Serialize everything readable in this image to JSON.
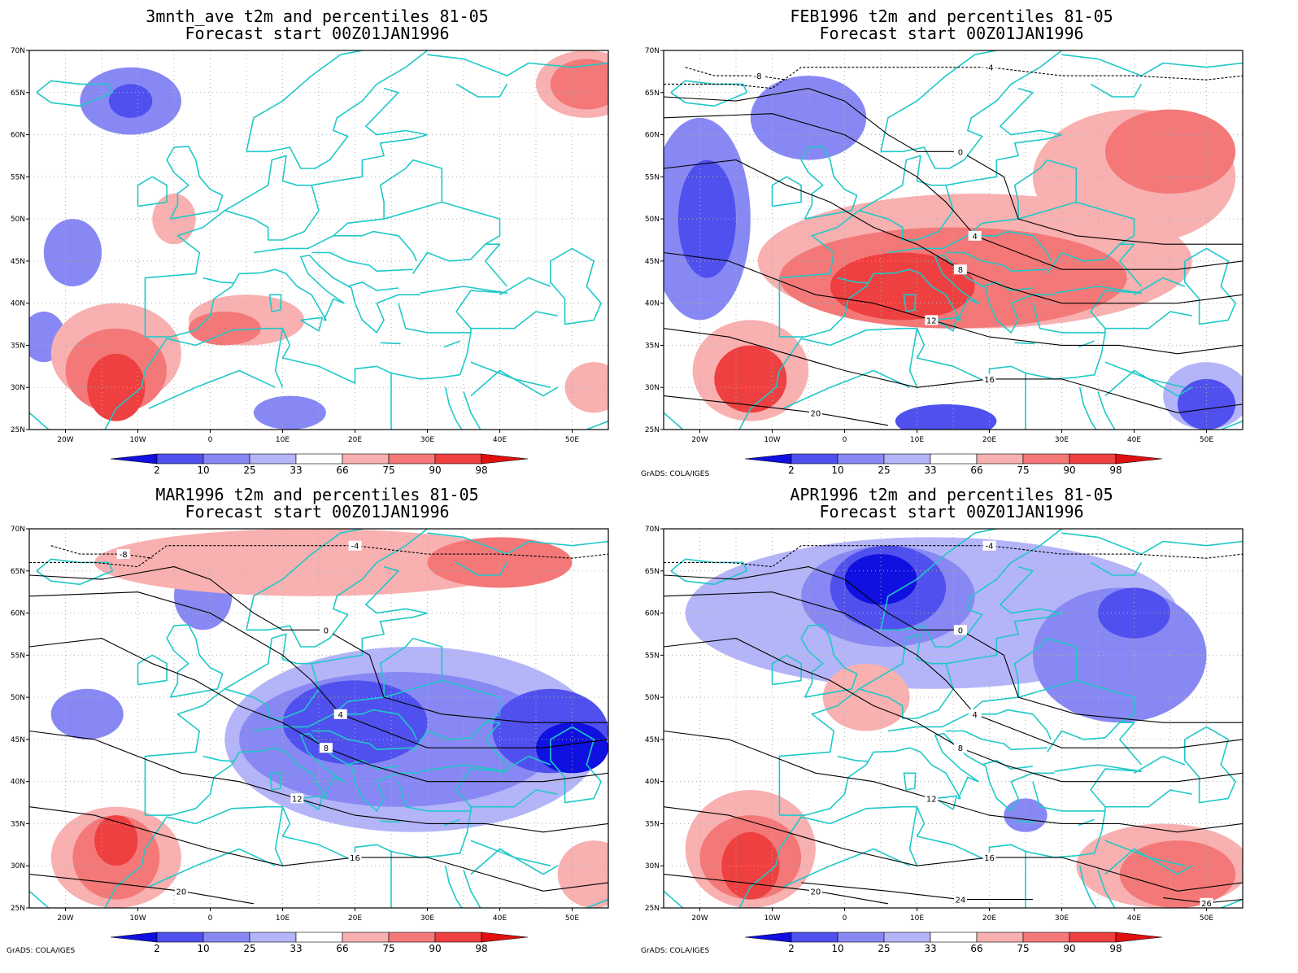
{
  "colors": {
    "p2": "#1010e0",
    "p10": "#5050ee",
    "p25": "#8888f4",
    "p33": "#b4b4f8",
    "p66": "#f8b0b0",
    "p75": "#f47878",
    "p90": "#ee4040",
    "p98": "#e01010",
    "coast": "#20c8c8",
    "contour": "#000000",
    "grid": "#b0b0b0"
  },
  "credit_text": "GrADS: COLA/IGES",
  "colorbar_labels": [
    "2",
    "10",
    "25",
    "33",
    "66",
    "75",
    "90",
    "98"
  ],
  "axes": {
    "x_labels": [
      "20W",
      "10W",
      "0",
      "10E",
      "20E",
      "30E",
      "40E",
      "50E"
    ],
    "y_labels": [
      "70N",
      "65N",
      "60N",
      "55N",
      "50N",
      "45N",
      "40N",
      "35N",
      "30N",
      "25N"
    ]
  },
  "panels": [
    {
      "id": "3mnth",
      "title_line1": "3mnth_ave t2m and percentiles 81-05",
      "title_line2": "Forecast start 00Z01JAN1996",
      "show_credit": false,
      "contours": [],
      "blobs": [
        {
          "c": "p25",
          "lon": -11,
          "lat": 64,
          "rx": 7,
          "ry": 4
        },
        {
          "c": "p10",
          "lon": -11,
          "lat": 64,
          "rx": 3,
          "ry": 2
        },
        {
          "c": "p25",
          "lon": -19,
          "lat": 46,
          "rx": 4,
          "ry": 4
        },
        {
          "c": "p25",
          "lon": -23,
          "lat": 36,
          "rx": 3,
          "ry": 3
        },
        {
          "c": "p25",
          "lon": 11,
          "lat": 27,
          "rx": 5,
          "ry": 2
        },
        {
          "c": "p66",
          "lon": -13,
          "lat": 34,
          "rx": 9,
          "ry": 6
        },
        {
          "c": "p75",
          "lon": -13,
          "lat": 32,
          "rx": 7,
          "ry": 5
        },
        {
          "c": "p90",
          "lon": -13,
          "lat": 30,
          "rx": 4,
          "ry": 4
        },
        {
          "c": "p66",
          "lon": 5,
          "lat": 38,
          "rx": 8,
          "ry": 3
        },
        {
          "c": "p75",
          "lon": 2,
          "lat": 37,
          "rx": 5,
          "ry": 2
        },
        {
          "c": "p66",
          "lon": -5,
          "lat": 50,
          "rx": 3,
          "ry": 3
        },
        {
          "c": "p66",
          "lon": 52,
          "lat": 66,
          "rx": 7,
          "ry": 4
        },
        {
          "c": "p75",
          "lon": 52,
          "lat": 66,
          "rx": 5,
          "ry": 3
        },
        {
          "c": "p66",
          "lon": 53,
          "lat": 30,
          "rx": 4,
          "ry": 3
        }
      ]
    },
    {
      "id": "feb",
      "title_line1": "FEB1996 t2m and percentiles 81-05",
      "title_line2": "Forecast start 00Z01JAN1996",
      "show_credit": true,
      "contours": [
        "-8",
        "-4",
        "0",
        "4",
        "8",
        "12",
        "16",
        "20"
      ],
      "blobs": [
        {
          "c": "p25",
          "lon": -20,
          "lat": 50,
          "rx": 7,
          "ry": 12
        },
        {
          "c": "p10",
          "lon": -19,
          "lat": 50,
          "rx": 4,
          "ry": 7
        },
        {
          "c": "p25",
          "lon": -5,
          "lat": 62,
          "rx": 8,
          "ry": 5
        },
        {
          "c": "p33",
          "lon": 50,
          "lat": 29,
          "rx": 6,
          "ry": 4
        },
        {
          "c": "p10",
          "lon": 50,
          "lat": 28,
          "rx": 4,
          "ry": 3
        },
        {
          "c": "p10",
          "lon": 14,
          "lat": 26,
          "rx": 7,
          "ry": 2
        },
        {
          "c": "p66",
          "lon": 18,
          "lat": 45,
          "rx": 30,
          "ry": 8
        },
        {
          "c": "p75",
          "lon": 15,
          "lat": 43,
          "rx": 24,
          "ry": 6
        },
        {
          "c": "p90",
          "lon": 8,
          "lat": 42,
          "rx": 10,
          "ry": 4
        },
        {
          "c": "p66",
          "lon": 40,
          "lat": 55,
          "rx": 14,
          "ry": 8
        },
        {
          "c": "p75",
          "lon": 45,
          "lat": 58,
          "rx": 9,
          "ry": 5
        },
        {
          "c": "p66",
          "lon": -13,
          "lat": 32,
          "rx": 8,
          "ry": 6
        },
        {
          "c": "p90",
          "lon": -13,
          "lat": 31,
          "rx": 5,
          "ry": 4
        }
      ]
    },
    {
      "id": "mar",
      "title_line1": "MAR1996 t2m and percentiles 81-05",
      "title_line2": "Forecast start 00Z01JAN1996",
      "show_credit": true,
      "contours": [
        "-8",
        "-4",
        "0",
        "4",
        "8",
        "12",
        "16",
        "20"
      ],
      "blobs": [
        {
          "c": "p33",
          "lon": 28,
          "lat": 45,
          "rx": 26,
          "ry": 11
        },
        {
          "c": "p25",
          "lon": 26,
          "lat": 45,
          "rx": 22,
          "ry": 8
        },
        {
          "c": "p10",
          "lon": 20,
          "lat": 47,
          "rx": 10,
          "ry": 5
        },
        {
          "c": "p10",
          "lon": 47,
          "lat": 46,
          "rx": 8,
          "ry": 5
        },
        {
          "c": "p2",
          "lon": 50,
          "lat": 44,
          "rx": 5,
          "ry": 3
        },
        {
          "c": "p25",
          "lon": -1,
          "lat": 62,
          "rx": 4,
          "ry": 4
        },
        {
          "c": "p25",
          "lon": -17,
          "lat": 48,
          "rx": 5,
          "ry": 3
        },
        {
          "c": "p66",
          "lon": -13,
          "lat": 31,
          "rx": 9,
          "ry": 6
        },
        {
          "c": "p75",
          "lon": -13,
          "lat": 31,
          "rx": 6,
          "ry": 5
        },
        {
          "c": "p90",
          "lon": -13,
          "lat": 33,
          "rx": 3,
          "ry": 3
        },
        {
          "c": "p66",
          "lon": 14,
          "lat": 66,
          "rx": 30,
          "ry": 4
        },
        {
          "c": "p75",
          "lon": 40,
          "lat": 66,
          "rx": 10,
          "ry": 3
        },
        {
          "c": "p66",
          "lon": 53,
          "lat": 29,
          "rx": 5,
          "ry": 4
        }
      ]
    },
    {
      "id": "apr",
      "title_line1": "APR1996 t2m and percentiles 81-05",
      "title_line2": "Forecast start 00Z01JAN1996",
      "show_credit": true,
      "contours": [
        "-4",
        "0",
        "4",
        "8",
        "12",
        "16",
        "20",
        "24",
        "26"
      ],
      "blobs": [
        {
          "c": "p33",
          "lon": 12,
          "lat": 60,
          "rx": 34,
          "ry": 9
        },
        {
          "c": "p25",
          "lon": 6,
          "lat": 62,
          "rx": 12,
          "ry": 6
        },
        {
          "c": "p10",
          "lon": 6,
          "lat": 63,
          "rx": 8,
          "ry": 5
        },
        {
          "c": "p2",
          "lon": 5,
          "lat": 64,
          "rx": 5,
          "ry": 3
        },
        {
          "c": "p25",
          "lon": 38,
          "lat": 55,
          "rx": 12,
          "ry": 8
        },
        {
          "c": "p10",
          "lon": 40,
          "lat": 60,
          "rx": 5,
          "ry": 3
        },
        {
          "c": "p66",
          "lon": -13,
          "lat": 32,
          "rx": 9,
          "ry": 7
        },
        {
          "c": "p75",
          "lon": -13,
          "lat": 31,
          "rx": 7,
          "ry": 5
        },
        {
          "c": "p90",
          "lon": -13,
          "lat": 30,
          "rx": 4,
          "ry": 4
        },
        {
          "c": "p66",
          "lon": 44,
          "lat": 30,
          "rx": 12,
          "ry": 5
        },
        {
          "c": "p75",
          "lon": 46,
          "lat": 29,
          "rx": 8,
          "ry": 4
        },
        {
          "c": "p66",
          "lon": 3,
          "lat": 50,
          "rx": 6,
          "ry": 4
        },
        {
          "c": "p25",
          "lon": 25,
          "lat": 36,
          "rx": 3,
          "ry": 2
        }
      ]
    }
  ]
}
